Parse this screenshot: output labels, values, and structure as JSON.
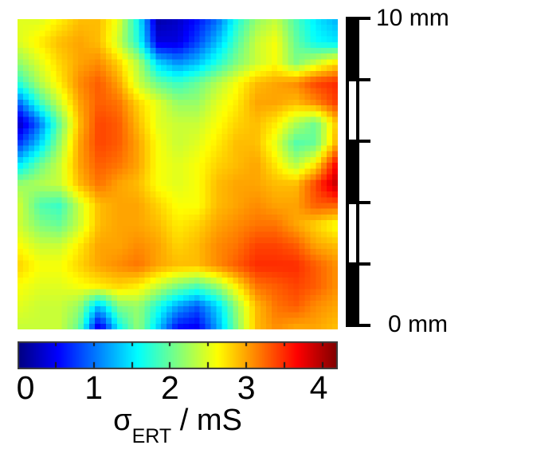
{
  "figure": {
    "background": "#ffffff",
    "scale_bar": {
      "top_label": "10 mm",
      "bottom_label": "0 mm",
      "length_mm": 10,
      "segments": 5,
      "segment_pattern": [
        "black",
        "white",
        "black",
        "white",
        "black"
      ],
      "tick_count": 6,
      "color": "#000000"
    },
    "colorbar": {
      "label_sigma": "σ",
      "label_sub": "ERT",
      "label_rest": " / mS",
      "tick_labels": [
        "0",
        "1",
        "2",
        "3",
        "4"
      ],
      "tick_values": [
        0,
        1,
        2,
        3,
        4
      ],
      "minor_tick_step": 0.5,
      "border_color": "#3c3c3c",
      "tick_color": "#1a1a1a"
    }
  },
  "chart_data": {
    "type": "heatmap",
    "title": "",
    "colorbar_label": "σ_ERT / mS",
    "units": "mS",
    "colormap": "jet",
    "vmin": 0,
    "vmax": 4.2,
    "colorbar_tick_values": [
      0,
      1,
      2,
      3,
      4
    ],
    "spatial_extent_mm": [
      0,
      10
    ],
    "grid_rows": 16,
    "grid_cols": 17,
    "grid": [
      [
        2.5,
        2.5,
        2.7,
        2.9,
        2.9,
        2.5,
        1.6,
        0.2,
        0.3,
        0.6,
        1.0,
        1.7,
        2.2,
        2.4,
        1.9,
        1.5,
        1.3
      ],
      [
        2.5,
        2.7,
        2.9,
        3.0,
        2.9,
        2.4,
        1.7,
        0.4,
        0.4,
        0.8,
        1.3,
        1.9,
        2.4,
        2.6,
        2.0,
        1.6,
        1.5
      ],
      [
        2.2,
        2.5,
        2.8,
        3.0,
        3.1,
        2.8,
        2.3,
        1.4,
        1.1,
        1.3,
        1.7,
        2.1,
        2.4,
        2.6,
        2.1,
        2.4,
        2.7
      ],
      [
        1.8,
        2.3,
        2.7,
        3.1,
        3.3,
        3.0,
        2.4,
        2.0,
        1.8,
        2.0,
        2.3,
        2.6,
        2.9,
        3.0,
        3.1,
        3.4,
        3.5
      ],
      [
        1.0,
        1.8,
        2.4,
        3.0,
        3.3,
        3.2,
        2.8,
        2.5,
        2.2,
        2.2,
        2.5,
        2.7,
        3.0,
        3.0,
        2.9,
        3.1,
        3.4
      ],
      [
        0.3,
        1.0,
        2.0,
        2.9,
        3.4,
        3.3,
        2.9,
        2.5,
        2.4,
        2.4,
        2.6,
        2.8,
        2.9,
        2.7,
        2.3,
        2.0,
        2.8
      ],
      [
        0.8,
        1.4,
        2.2,
        3.0,
        3.4,
        3.3,
        3.0,
        2.6,
        2.4,
        2.5,
        2.7,
        2.9,
        2.9,
        2.5,
        1.9,
        2.0,
        2.9
      ],
      [
        1.5,
        2.0,
        2.4,
        3.0,
        3.3,
        3.2,
        3.0,
        2.6,
        2.5,
        2.6,
        2.8,
        2.9,
        3.0,
        2.7,
        2.3,
        2.7,
        3.6
      ],
      [
        2.2,
        2.3,
        2.4,
        2.9,
        3.2,
        3.0,
        2.9,
        2.6,
        2.5,
        2.6,
        2.9,
        3.0,
        3.0,
        2.9,
        2.9,
        3.4,
        3.9
      ],
      [
        2.4,
        1.9,
        1.8,
        2.4,
        2.9,
        3.0,
        3.0,
        2.8,
        2.6,
        2.6,
        2.9,
        3.0,
        3.1,
        3.0,
        3.0,
        3.3,
        3.3
      ],
      [
        2.4,
        2.1,
        2.0,
        2.4,
        2.9,
        3.0,
        3.0,
        2.9,
        2.7,
        2.8,
        3.0,
        3.1,
        3.2,
        3.2,
        3.0,
        2.8,
        2.6
      ],
      [
        2.6,
        2.4,
        2.4,
        2.7,
        3.0,
        3.0,
        3.1,
        3.0,
        2.8,
        2.9,
        3.1,
        3.2,
        3.4,
        3.4,
        3.3,
        3.0,
        2.9
      ],
      [
        2.8,
        2.6,
        2.6,
        2.8,
        3.0,
        3.1,
        3.2,
        3.0,
        2.9,
        2.9,
        3.1,
        3.3,
        3.5,
        3.5,
        3.5,
        3.3,
        3.1
      ],
      [
        2.6,
        2.5,
        2.5,
        2.6,
        2.7,
        2.8,
        2.7,
        2.4,
        2.1,
        1.9,
        2.2,
        2.7,
        3.2,
        3.3,
        3.4,
        3.3,
        3.1
      ],
      [
        2.5,
        2.4,
        2.4,
        2.2,
        1.3,
        2.1,
        2.2,
        1.7,
        1.2,
        0.9,
        1.4,
        2.2,
        2.9,
        3.2,
        3.3,
        3.1,
        3.0
      ],
      [
        2.4,
        2.4,
        2.4,
        2.0,
        0.4,
        1.6,
        2.2,
        1.4,
        0.6,
        0.5,
        1.2,
        2.1,
        2.9,
        3.1,
        3.0,
        3.0,
        2.9
      ]
    ]
  }
}
